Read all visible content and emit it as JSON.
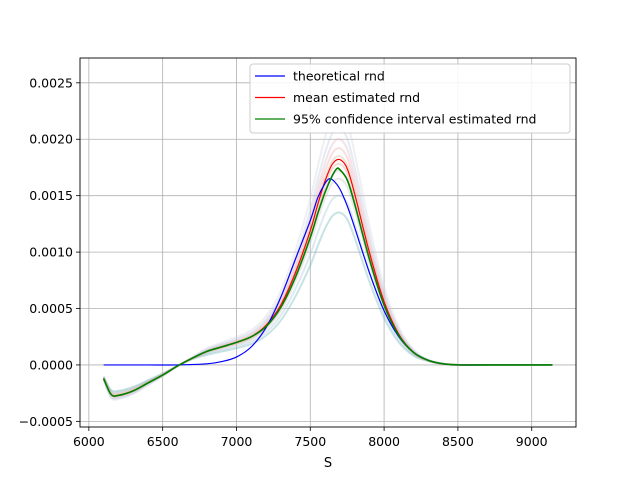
{
  "chart_data": {
    "type": "line",
    "title": "",
    "xlabel": "S",
    "ylabel": "",
    "xlim": [
      5940,
      9300
    ],
    "ylim": [
      -0.00055,
      0.00272
    ],
    "xticks": [
      6000,
      6500,
      7000,
      7500,
      8000,
      8500,
      9000
    ],
    "xtick_labels": [
      "6000",
      "6500",
      "7000",
      "7500",
      "8000",
      "8500",
      "9000"
    ],
    "yticks": [
      -0.0005,
      0.0,
      0.0005,
      0.001,
      0.0015,
      0.002,
      0.0025
    ],
    "ytick_labels": [
      "−0.0005",
      "0.0000",
      "0.0005",
      "0.0010",
      "0.0015",
      "0.0020",
      "0.0025"
    ],
    "grid": true,
    "legend_position": "top-right",
    "series": [
      {
        "name": "theoretical rnd",
        "color": "#0000ff",
        "x": [
          6100,
          6400,
          6600,
          6800,
          6900,
          7000,
          7100,
          7200,
          7300,
          7400,
          7500,
          7550,
          7600,
          7630,
          7660,
          7700,
          7750,
          7800,
          7900,
          8000,
          8100,
          8200,
          8300,
          8400,
          8500,
          8700,
          9000,
          9140
        ],
        "y": [
          0,
          0,
          0,
          1e-05,
          3e-05,
          7e-05,
          0.00016,
          0.00033,
          0.0006,
          0.00094,
          0.00128,
          0.00148,
          0.00161,
          0.00165,
          0.00163,
          0.00156,
          0.00141,
          0.00122,
          0.00082,
          0.00048,
          0.00025,
          0.00011,
          4e-05,
          1e-05,
          0,
          0,
          0,
          0
        ]
      },
      {
        "name": "mean estimated rnd",
        "color": "#ff0000",
        "x": [
          6100,
          6150,
          6200,
          6300,
          6400,
          6500,
          6600,
          6700,
          6800,
          6900,
          7000,
          7100,
          7200,
          7300,
          7400,
          7500,
          7550,
          7600,
          7650,
          7700,
          7750,
          7800,
          7900,
          8000,
          8100,
          8200,
          8300,
          8400,
          8500,
          8600,
          8800,
          9000,
          9140
        ],
        "y": [
          -0.00012,
          -0.00026,
          -0.00027,
          -0.00023,
          -0.00016,
          -9e-05,
          -1e-05,
          6e-05,
          0.00012,
          0.00016,
          0.0002,
          0.00025,
          0.00035,
          0.00053,
          0.00082,
          0.00119,
          0.00142,
          0.00163,
          0.00178,
          0.00182,
          0.00174,
          0.00152,
          0.001,
          0.00056,
          0.00027,
          0.00011,
          4e-05,
          1e-05,
          0,
          0,
          0,
          0,
          0
        ]
      },
      {
        "name": "95% confidence interval estimated rnd",
        "color": "#008000",
        "x": [
          6100,
          6150,
          6200,
          6300,
          6400,
          6500,
          6600,
          6700,
          6800,
          6900,
          7000,
          7100,
          7200,
          7300,
          7400,
          7500,
          7550,
          7600,
          7650,
          7680,
          7700,
          7750,
          7800,
          7900,
          8000,
          8100,
          8200,
          8300,
          8400,
          8500,
          8600,
          8800,
          9000,
          9140
        ],
        "y": [
          -0.00012,
          -0.00026,
          -0.00027,
          -0.00023,
          -0.00016,
          -9e-05,
          -1e-05,
          6e-05,
          0.00012,
          0.00016,
          0.0002,
          0.00025,
          0.00034,
          0.00051,
          0.00078,
          0.00113,
          0.00134,
          0.00153,
          0.00168,
          0.00174,
          0.00173,
          0.00164,
          0.00143,
          0.00094,
          0.00053,
          0.00026,
          0.00011,
          4e-05,
          1e-05,
          0,
          0,
          0,
          0,
          0
        ]
      }
    ],
    "sample_curve_peaks": [
      0.00135,
      0.0015,
      0.00165,
      0.00172,
      0.00178,
      0.00185,
      0.00192,
      0.002,
      0.0021,
      0.00225
    ]
  }
}
